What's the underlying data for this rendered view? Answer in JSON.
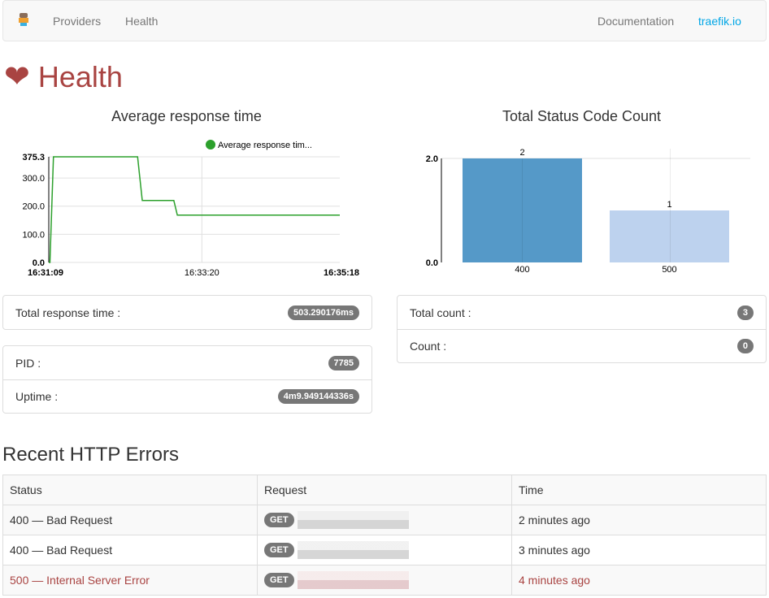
{
  "nav": {
    "providers": "Providers",
    "health": "Health",
    "documentation": "Documentation",
    "traefik": "traefik.io"
  },
  "colors": {
    "accent": "#00a6e6",
    "danger": "#a94442",
    "line": "#2ca02c",
    "bar400": "#5599c8",
    "bar500": "#bdd2ee"
  },
  "page_title": "Health",
  "chart_data": [
    {
      "type": "line",
      "title": "Average response time",
      "series": [
        {
          "name": "Average response tim...",
          "x": [
            "16:31:09",
            "16:31:10",
            "16:31:13",
            "16:32:25",
            "16:32:29",
            "16:32:56",
            "16:32:59",
            "16:35:18"
          ],
          "values": [
            0,
            0,
            375.3,
            375.3,
            220,
            220,
            168,
            168
          ]
        }
      ],
      "yticks": [
        "0.0",
        "100.0",
        "200.0",
        "300.0",
        "375.3"
      ],
      "xticks": [
        "16:31:09",
        "16:33:20",
        "16:35:18"
      ],
      "ylim": [
        0,
        375.3
      ],
      "legend": "top-right"
    },
    {
      "type": "bar",
      "title": "Total Status Code Count",
      "categories": [
        "400",
        "500"
      ],
      "values": [
        2,
        1
      ],
      "yticks": [
        "0.0",
        "2.0"
      ],
      "ylim": [
        0,
        2
      ]
    }
  ],
  "stats": {
    "total_response_time_label": "Total response time :",
    "total_response_time": "503.290176ms",
    "pid_label": "PID :",
    "pid": "7785",
    "uptime_label": "Uptime :",
    "uptime": "4m9.949144336s",
    "total_count_label": "Total count :",
    "total_count": "3",
    "count_label": "Count :",
    "count": "0"
  },
  "errors": {
    "title": "Recent HTTP Errors",
    "headers": [
      "Status",
      "Request",
      "Time"
    ],
    "rows": [
      {
        "status": "400 — Bad Request",
        "method": "GET",
        "time": "2 minutes ago"
      },
      {
        "status": "400 — Bad Request",
        "method": "GET",
        "time": "3 minutes ago"
      },
      {
        "status": "500 — Internal Server Error",
        "method": "GET",
        "time": "4 minutes ago"
      }
    ]
  }
}
